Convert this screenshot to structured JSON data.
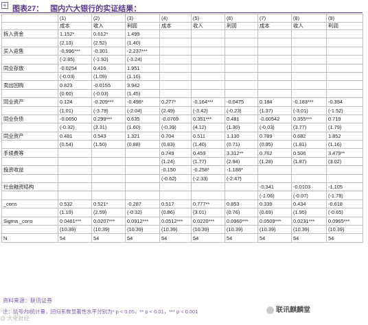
{
  "header": {
    "move_icon": "move-icon",
    "figure_label": "图表27：",
    "title": "国内六大银行的实证结果："
  },
  "table": {
    "rows": [
      [
        "",
        "(1)",
        "(2)",
        "(3)",
        "(4)",
        "(5)",
        "(6)",
        "(7)",
        "(8)",
        "(9)"
      ],
      [
        "",
        "成本",
        "收入",
        "利润",
        "成本",
        "收入",
        "利润",
        "成本",
        "收入",
        "利润"
      ],
      [
        "拆入资金",
        "1.152*",
        "0.612*",
        "1.499",
        "",
        "",
        "",
        "",
        "",
        ""
      ],
      [
        "",
        "(2.13)",
        "(2.52)",
        "(1.40)",
        "",
        "",
        "",
        "",
        "",
        ""
      ],
      [
        "买入返售",
        "-0.996***",
        "-0.301",
        "-2.237***",
        "",
        "",
        "",
        "",
        "",
        ""
      ],
      [
        "",
        "(-2.85)",
        "(-1.92)",
        "(-3.24)",
        "",
        "",
        "",
        "",
        "",
        ""
      ],
      [
        "同业存放",
        "-0.0254",
        "0.416",
        "1.951",
        "",
        "",
        "",
        "",
        "",
        ""
      ],
      [
        "",
        "(-0.03)",
        "(1.09)",
        "(1.16)",
        "",
        "",
        "",
        "",
        "",
        ""
      ],
      [
        "卖出回购",
        "0.823",
        "-0.0155",
        "3.942",
        "",
        "",
        "",
        "",
        "",
        ""
      ],
      [
        "",
        "(0.60)",
        "(-0.03)",
        "(1.45)",
        "",
        "",
        "",
        "",
        "",
        ""
      ],
      [
        "同业资产",
        "0.124",
        "-0.209***",
        "-0.498*",
        "0.277*",
        "-0.164***",
        "-0.0475",
        "0.184",
        "-0.183***",
        "-0.394"
      ],
      [
        "",
        "(1.01)",
        "(-3.78)",
        "(-2.04)",
        "(2.49)",
        "(-3.42)",
        "(-0.23)",
        "(1.37)",
        "(-3.01)",
        "(-1.52)"
      ],
      [
        "同业负债",
        "-0.0650",
        "0.299***",
        "0.635",
        "-0.0769",
        "0.351***",
        "0.481",
        "-0.00542",
        "0.355***",
        "0.719"
      ],
      [
        "",
        "(-0.32)",
        "(3.31)",
        "(1.60)",
        "(-0.39)",
        "(4.12)",
        "(1.30)",
        "(-0.03)",
        "(3.77)",
        "(1.79)"
      ],
      [
        "同业资产",
        "0.481",
        "0.543",
        "1.321",
        "0.704",
        "0.511",
        "1.130",
        "0.789",
        "0.682",
        "1.852"
      ],
      [
        "",
        "(0.54)",
        "(1.50)",
        "(0.88)",
        "(0.83)",
        "(1.40)",
        "(0.71)",
        "(0.95)",
        "(1.81)",
        "(1.16)"
      ],
      [
        "手续费等",
        "",
        "",
        "",
        "0.749",
        "0.459",
        "3.312**",
        "0.762",
        "0.506",
        "3.479**"
      ],
      [
        "",
        "",
        "",
        "",
        "(1.24)",
        "(1.77)",
        "(2.94)",
        "(1.28)",
        "(1.87)",
        "(3.02)"
      ],
      [
        "投资收益",
        "",
        "",
        "",
        "-0.150",
        "-0.258*",
        "-1.188*",
        "",
        "",
        ""
      ],
      [
        "",
        "",
        "",
        "",
        "(-0.62)",
        "(-2.33)",
        "(-2.47)",
        "",
        "",
        ""
      ],
      [
        "社会融资结构",
        "",
        "",
        "",
        "",
        "",
        "",
        "-0.341",
        "-0.0103",
        "-1.105"
      ],
      [
        "",
        "",
        "",
        "",
        "",
        "",
        "",
        "(-1.06)",
        "(-0.07)",
        "(-1.78)"
      ],
      [
        "_cons",
        "0.532",
        "0.521*",
        "-0.287",
        "0.517",
        "0.777**",
        "0.853",
        "0.339",
        "0.434",
        "-0.618"
      ],
      [
        "",
        "(1.19)",
        "(2.59)",
        "(-0.32)",
        "(0.86)",
        "(3.01)",
        "(0.76)",
        "(0.69)",
        "(1.95)",
        "(-0.65)"
      ],
      [
        "Sigma _cons",
        "0.0461***",
        "0.0207***",
        "0.0912***",
        "0.0512***",
        "0.0220***",
        "0.0960***",
        "0.0509***",
        "0.0231***",
        "0.0965***"
      ],
      [
        "",
        "(10.39)",
        "(10.39)",
        "(10.39)",
        "(10.39)",
        "(10.39)",
        "(10.39)",
        "(10.39)",
        "(10.39)",
        "(10.39)"
      ],
      [
        "N",
        "54",
        "54",
        "54",
        "54",
        "54",
        "54",
        "54",
        "54",
        "54"
      ]
    ]
  },
  "footer": {
    "source": "资料来源：联讯证券",
    "note": "注：括号内t统计量，回归系数显著性水平分别为* p < 0.05，** p < 0.01，*** p < 0.001",
    "watermark_left": "@ 大佬财经",
    "watermark_right": "联讯麒麟堂",
    "watermark_icon": "wechat-icon"
  }
}
